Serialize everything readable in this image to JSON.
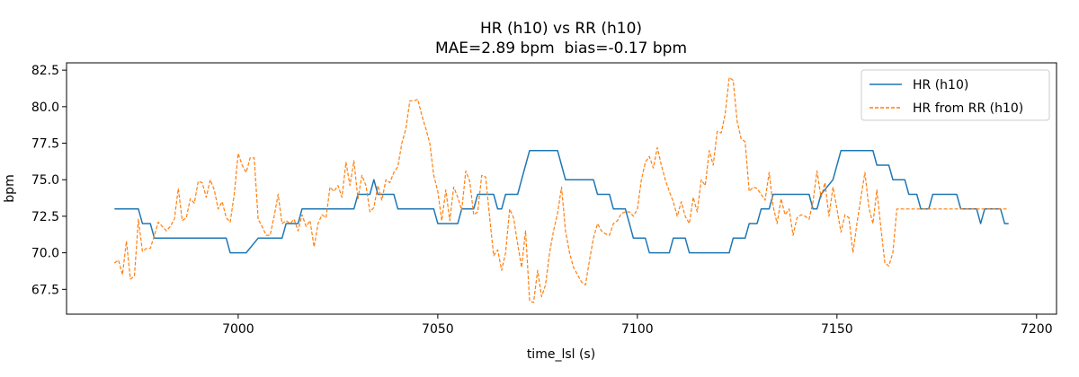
{
  "chart_data": {
    "type": "line",
    "title": "HR (h10) vs RR (h10)",
    "subtitle": "MAE=2.89 bpm  bias=-0.17 bpm",
    "xlabel": "time_lsl (s)",
    "ylabel": "bpm",
    "xlim": [
      6957,
      7205
    ],
    "ylim": [
      65.8,
      83.0
    ],
    "x_ticks": [
      7000,
      7050,
      7100,
      7150,
      7200
    ],
    "x_tick_labels": [
      "7000",
      "7050",
      "7100",
      "7150",
      "7200"
    ],
    "y_ticks": [
      67.5,
      70.0,
      72.5,
      75.0,
      77.5,
      80.0,
      82.5
    ],
    "y_tick_labels": [
      "67.5",
      "70.0",
      "72.5",
      "75.0",
      "77.5",
      "80.0",
      "82.5"
    ],
    "grid": false,
    "legend_position": "top-right",
    "series": [
      {
        "name": "HR (h10)",
        "color": "#1f77b4",
        "style": "solid",
        "points": [
          [
            6969,
            73
          ],
          [
            6975,
            73
          ],
          [
            6976,
            72
          ],
          [
            6978,
            72
          ],
          [
            6979,
            71
          ],
          [
            6997,
            71
          ],
          [
            6998,
            70
          ],
          [
            7002,
            70
          ],
          [
            7005,
            71
          ],
          [
            7011,
            71
          ],
          [
            7012,
            72
          ],
          [
            7015,
            72
          ],
          [
            7016,
            73
          ],
          [
            7029,
            73
          ],
          [
            7030,
            74
          ],
          [
            7033,
            74
          ],
          [
            7034,
            75
          ],
          [
            7035,
            74
          ],
          [
            7039,
            74
          ],
          [
            7040,
            73
          ],
          [
            7049,
            73
          ],
          [
            7050,
            72
          ],
          [
            7055,
            72
          ],
          [
            7056,
            73
          ],
          [
            7059,
            73
          ],
          [
            7060,
            74
          ],
          [
            7064,
            74
          ],
          [
            7065,
            73
          ],
          [
            7066,
            73
          ],
          [
            7067,
            74
          ],
          [
            7070,
            74
          ],
          [
            7071,
            75
          ],
          [
            7072,
            76
          ],
          [
            7073,
            77
          ],
          [
            7080,
            77
          ],
          [
            7081,
            76
          ],
          [
            7082,
            75
          ],
          [
            7089,
            75
          ],
          [
            7090,
            74
          ],
          [
            7093,
            74
          ],
          [
            7094,
            73
          ],
          [
            7097,
            73
          ],
          [
            7098,
            72
          ],
          [
            7099,
            71
          ],
          [
            7102,
            71
          ],
          [
            7103,
            70
          ],
          [
            7108,
            70
          ],
          [
            7109,
            71
          ],
          [
            7112,
            71
          ],
          [
            7113,
            70
          ],
          [
            7123,
            70
          ],
          [
            7124,
            71
          ],
          [
            7127,
            71
          ],
          [
            7128,
            72
          ],
          [
            7130,
            72
          ],
          [
            7131,
            73
          ],
          [
            7133,
            73
          ],
          [
            7134,
            74
          ],
          [
            7143,
            74
          ],
          [
            7144,
            73
          ],
          [
            7145,
            73
          ],
          [
            7146,
            74
          ],
          [
            7149,
            75
          ],
          [
            7151,
            77
          ],
          [
            7159,
            77
          ],
          [
            7160,
            76
          ],
          [
            7163,
            76
          ],
          [
            7164,
            75
          ],
          [
            7167,
            75
          ],
          [
            7168,
            74
          ],
          [
            7170,
            74
          ],
          [
            7171,
            73
          ],
          [
            7173,
            73
          ],
          [
            7174,
            74
          ],
          [
            7180,
            74
          ],
          [
            7181,
            73
          ],
          [
            7185,
            73
          ],
          [
            7186,
            72
          ],
          [
            7187,
            73
          ],
          [
            7191,
            73
          ],
          [
            7192,
            72
          ],
          [
            7193,
            72
          ]
        ]
      },
      {
        "name": "HR from RR (h10)",
        "color": "#ff7f0e",
        "style": "dashed",
        "points": [
          [
            6969,
            69.3
          ],
          [
            6970,
            69.5
          ],
          [
            6971,
            68.5
          ],
          [
            6972,
            70.8
          ],
          [
            6973,
            68.2
          ],
          [
            6974,
            68.4
          ],
          [
            6975,
            72.3
          ],
          [
            6976,
            70.1
          ],
          [
            6977,
            70.3
          ],
          [
            6978,
            70.3
          ],
          [
            6979,
            71.2
          ],
          [
            6980,
            72.1
          ],
          [
            6981,
            71.8
          ],
          [
            6982,
            71.5
          ],
          [
            6983,
            71.8
          ],
          [
            6984,
            72.3
          ],
          [
            6985,
            74.4
          ],
          [
            6986,
            72.2
          ],
          [
            6987,
            72.4
          ],
          [
            6988,
            73.7
          ],
          [
            6989,
            73.4
          ],
          [
            6990,
            74.9
          ],
          [
            6991,
            74.8
          ],
          [
            6992,
            73.8
          ],
          [
            6993,
            75.0
          ],
          [
            6994,
            74.3
          ],
          [
            6995,
            73.0
          ],
          [
            6996,
            73.5
          ],
          [
            6997,
            72.4
          ],
          [
            6998,
            72.1
          ],
          [
            6999,
            74.0
          ],
          [
            7000,
            76.8
          ],
          [
            7001,
            76.0
          ],
          [
            7002,
            75.5
          ],
          [
            7003,
            76.5
          ],
          [
            7004,
            76.5
          ],
          [
            7005,
            72.3
          ],
          [
            7006,
            71.8
          ],
          [
            7007,
            71.2
          ],
          [
            7008,
            71.2
          ],
          [
            7009,
            72.5
          ],
          [
            7010,
            74.0
          ],
          [
            7011,
            72.0
          ],
          [
            7012,
            72.2
          ],
          [
            7013,
            72.0
          ],
          [
            7014,
            72.3
          ],
          [
            7015,
            71.5
          ],
          [
            7016,
            72.6
          ],
          [
            7017,
            71.8
          ],
          [
            7018,
            72.2
          ],
          [
            7019,
            70.4
          ],
          [
            7020,
            72.0
          ],
          [
            7021,
            72.6
          ],
          [
            7022,
            72.4
          ],
          [
            7023,
            74.5
          ],
          [
            7024,
            74.2
          ],
          [
            7025,
            74.6
          ],
          [
            7026,
            73.8
          ],
          [
            7027,
            76.2
          ],
          [
            7028,
            74.6
          ],
          [
            7029,
            76.3
          ],
          [
            7030,
            73.7
          ],
          [
            7031,
            75.3
          ],
          [
            7032,
            74.6
          ],
          [
            7033,
            72.8
          ],
          [
            7034,
            73.1
          ],
          [
            7035,
            74.6
          ],
          [
            7036,
            73.6
          ],
          [
            7037,
            75.0
          ],
          [
            7038,
            74.8
          ],
          [
            7039,
            75.5
          ],
          [
            7040,
            75.9
          ],
          [
            7041,
            77.5
          ],
          [
            7042,
            78.5
          ],
          [
            7043,
            80.4
          ],
          [
            7044,
            80.4
          ],
          [
            7045,
            80.5
          ],
          [
            7046,
            79.4
          ],
          [
            7047,
            78.5
          ],
          [
            7048,
            77.5
          ],
          [
            7049,
            75.3
          ],
          [
            7050,
            74.2
          ],
          [
            7051,
            72.2
          ],
          [
            7052,
            74.3
          ],
          [
            7053,
            72.2
          ],
          [
            7054,
            74.5
          ],
          [
            7055,
            73.8
          ],
          [
            7056,
            72.9
          ],
          [
            7057,
            75.6
          ],
          [
            7058,
            74.9
          ],
          [
            7059,
            72.6
          ],
          [
            7060,
            72.8
          ],
          [
            7061,
            75.3
          ],
          [
            7062,
            75.2
          ],
          [
            7063,
            72.4
          ],
          [
            7064,
            69.8
          ],
          [
            7065,
            70.2
          ],
          [
            7066,
            68.8
          ],
          [
            7067,
            70.0
          ],
          [
            7068,
            73.0
          ],
          [
            7069,
            72.4
          ],
          [
            7070,
            70.6
          ],
          [
            7071,
            69.0
          ],
          [
            7072,
            71.5
          ],
          [
            7073,
            66.7
          ],
          [
            7074,
            66.6
          ],
          [
            7075,
            68.8
          ],
          [
            7076,
            67.0
          ],
          [
            7077,
            67.8
          ],
          [
            7078,
            70.0
          ],
          [
            7079,
            71.5
          ],
          [
            7080,
            72.7
          ],
          [
            7081,
            74.5
          ],
          [
            7082,
            71.5
          ],
          [
            7083,
            70.0
          ],
          [
            7084,
            69.0
          ],
          [
            7085,
            68.5
          ],
          [
            7086,
            68.0
          ],
          [
            7087,
            67.8
          ],
          [
            7088,
            69.5
          ],
          [
            7089,
            71.0
          ],
          [
            7090,
            72.0
          ],
          [
            7091,
            71.5
          ],
          [
            7092,
            71.3
          ],
          [
            7093,
            71.2
          ],
          [
            7094,
            72.0
          ],
          [
            7095,
            72.2
          ],
          [
            7096,
            72.7
          ],
          [
            7097,
            72.8
          ],
          [
            7098,
            72.8
          ],
          [
            7099,
            72.5
          ],
          [
            7100,
            73.0
          ],
          [
            7101,
            75.0
          ],
          [
            7102,
            76.2
          ],
          [
            7103,
            76.6
          ],
          [
            7104,
            75.8
          ],
          [
            7105,
            77.2
          ],
          [
            7106,
            76.0
          ],
          [
            7107,
            75.0
          ],
          [
            7108,
            74.2
          ],
          [
            7109,
            73.5
          ],
          [
            7110,
            72.5
          ],
          [
            7111,
            73.5
          ],
          [
            7112,
            72.5
          ],
          [
            7113,
            72.0
          ],
          [
            7114,
            73.8
          ],
          [
            7115,
            72.8
          ],
          [
            7116,
            75.0
          ],
          [
            7117,
            74.6
          ],
          [
            7118,
            77.0
          ],
          [
            7119,
            76.0
          ],
          [
            7120,
            78.3
          ],
          [
            7121,
            78.2
          ],
          [
            7122,
            79.5
          ],
          [
            7123,
            82.0
          ],
          [
            7124,
            81.8
          ],
          [
            7125,
            79.0
          ],
          [
            7126,
            77.8
          ],
          [
            7127,
            77.6
          ],
          [
            7128,
            74.2
          ],
          [
            7129,
            74.5
          ],
          [
            7130,
            74.4
          ],
          [
            7131,
            74.0
          ],
          [
            7132,
            73.6
          ],
          [
            7133,
            75.5
          ],
          [
            7134,
            73.2
          ],
          [
            7135,
            72.0
          ],
          [
            7136,
            73.7
          ],
          [
            7137,
            72.6
          ],
          [
            7138,
            73.0
          ],
          [
            7139,
            71.2
          ],
          [
            7140,
            72.4
          ],
          [
            7141,
            72.6
          ],
          [
            7142,
            72.5
          ],
          [
            7143,
            72.3
          ],
          [
            7144,
            73.5
          ],
          [
            7145,
            75.6
          ],
          [
            7146,
            73.8
          ],
          [
            7147,
            74.8
          ],
          [
            7148,
            72.5
          ],
          [
            7149,
            74.5
          ],
          [
            7150,
            73.0
          ],
          [
            7151,
            71.4
          ],
          [
            7152,
            72.6
          ],
          [
            7153,
            72.4
          ],
          [
            7154,
            70.0
          ],
          [
            7155,
            72.0
          ],
          [
            7156,
            73.8
          ],
          [
            7157,
            75.5
          ],
          [
            7158,
            73.1
          ],
          [
            7159,
            72.0
          ],
          [
            7160,
            74.3
          ],
          [
            7161,
            71.7
          ],
          [
            7162,
            69.3
          ],
          [
            7163,
            69.1
          ],
          [
            7164,
            70.0
          ],
          [
            7165,
            73.0
          ],
          [
            7170,
            73.0
          ],
          [
            7175,
            73.0
          ],
          [
            7180,
            73.0
          ],
          [
            7185,
            73.0
          ],
          [
            7190,
            73.0
          ],
          [
            7193,
            73.0
          ]
        ]
      }
    ]
  }
}
